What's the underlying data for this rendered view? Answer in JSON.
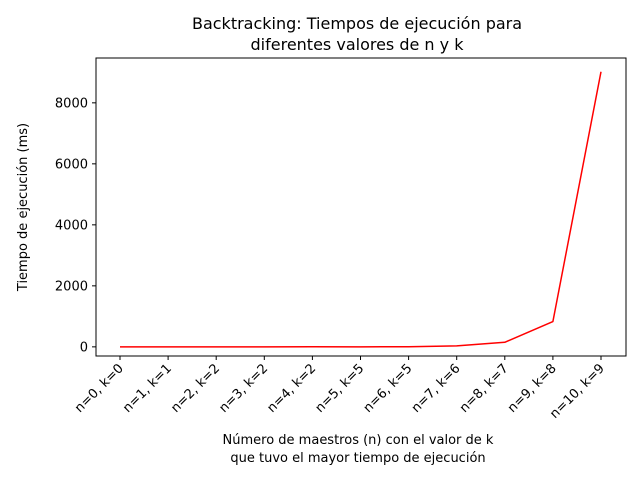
{
  "chart_data": {
    "type": "line",
    "title_lines": [
      "Backtracking: Tiempos de ejecución para",
      "diferentes valores de n y k"
    ],
    "xlabel_lines": [
      "Número de maestros (n) con el valor de k",
      "que tuvo el mayor tiempo de ejecución"
    ],
    "ylabel": "Tiempo de ejecución (ms)",
    "categories": [
      "n=0, k=0",
      "n=1, k=1",
      "n=2, k=2",
      "n=3, k=2",
      "n=4, k=2",
      "n=5, k=5",
      "n=6, k=5",
      "n=7, k=6",
      "n=8, k=7",
      "n=9, k=8",
      "n=10, k=9"
    ],
    "series": [
      {
        "values": [
          0,
          0,
          0,
          1,
          3,
          0,
          3,
          30,
          150,
          830,
          9020
        ],
        "color": "#ff0000"
      }
    ],
    "ylim": [
      -300,
      9470
    ],
    "yticks": [
      0,
      2000,
      4000,
      6000,
      8000
    ],
    "grid": false
  }
}
